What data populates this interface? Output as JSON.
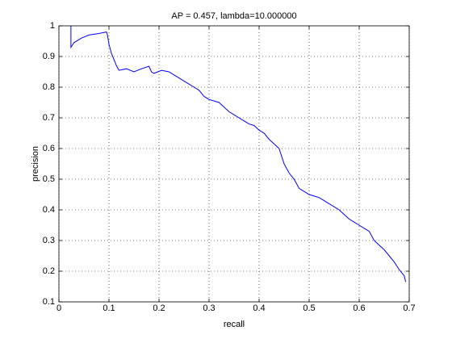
{
  "chart_data": {
    "type": "line",
    "title": "AP = 0.457, lambda=10.000000",
    "x_label": "recall",
    "y_label": "precision",
    "x": [
      0.024,
      0.024,
      0.03,
      0.045,
      0.06,
      0.08,
      0.095,
      0.097,
      0.1,
      0.105,
      0.11,
      0.115,
      0.12,
      0.135,
      0.15,
      0.165,
      0.18,
      0.185,
      0.19,
      0.205,
      0.22,
      0.23,
      0.24,
      0.25,
      0.26,
      0.27,
      0.28,
      0.29,
      0.3,
      0.31,
      0.32,
      0.33,
      0.34,
      0.35,
      0.36,
      0.37,
      0.38,
      0.39,
      0.4,
      0.41,
      0.42,
      0.43,
      0.44,
      0.45,
      0.46,
      0.47,
      0.48,
      0.49,
      0.5,
      0.51,
      0.52,
      0.53,
      0.54,
      0.55,
      0.56,
      0.57,
      0.58,
      0.59,
      0.6,
      0.61,
      0.62,
      0.63,
      0.64,
      0.65,
      0.66,
      0.67,
      0.68,
      0.69,
      0.693
    ],
    "series": [
      {
        "name": "precision",
        "color": "#0000ff",
        "values": [
          1.0,
          0.93,
          0.945,
          0.96,
          0.97,
          0.975,
          0.98,
          0.97,
          0.94,
          0.91,
          0.89,
          0.87,
          0.855,
          0.86,
          0.85,
          0.86,
          0.868,
          0.85,
          0.845,
          0.855,
          0.85,
          0.84,
          0.83,
          0.82,
          0.81,
          0.8,
          0.79,
          0.77,
          0.76,
          0.755,
          0.75,
          0.735,
          0.72,
          0.71,
          0.7,
          0.69,
          0.68,
          0.675,
          0.66,
          0.65,
          0.63,
          0.615,
          0.6,
          0.55,
          0.52,
          0.5,
          0.47,
          0.46,
          0.45,
          0.445,
          0.44,
          0.43,
          0.42,
          0.41,
          0.4,
          0.385,
          0.37,
          0.36,
          0.35,
          0.34,
          0.33,
          0.3,
          0.285,
          0.27,
          0.25,
          0.23,
          0.205,
          0.185,
          0.165
        ]
      }
    ],
    "xlim": [
      0,
      0.7
    ],
    "xticks": [
      0,
      0.1,
      0.2,
      0.3,
      0.4,
      0.5,
      0.6,
      0.7
    ],
    "ylim": [
      0.1,
      1
    ],
    "yticks": [
      0.1,
      0.2,
      0.3,
      0.4,
      0.5,
      0.6,
      0.7,
      0.8,
      0.9,
      1
    ],
    "grid": true
  }
}
